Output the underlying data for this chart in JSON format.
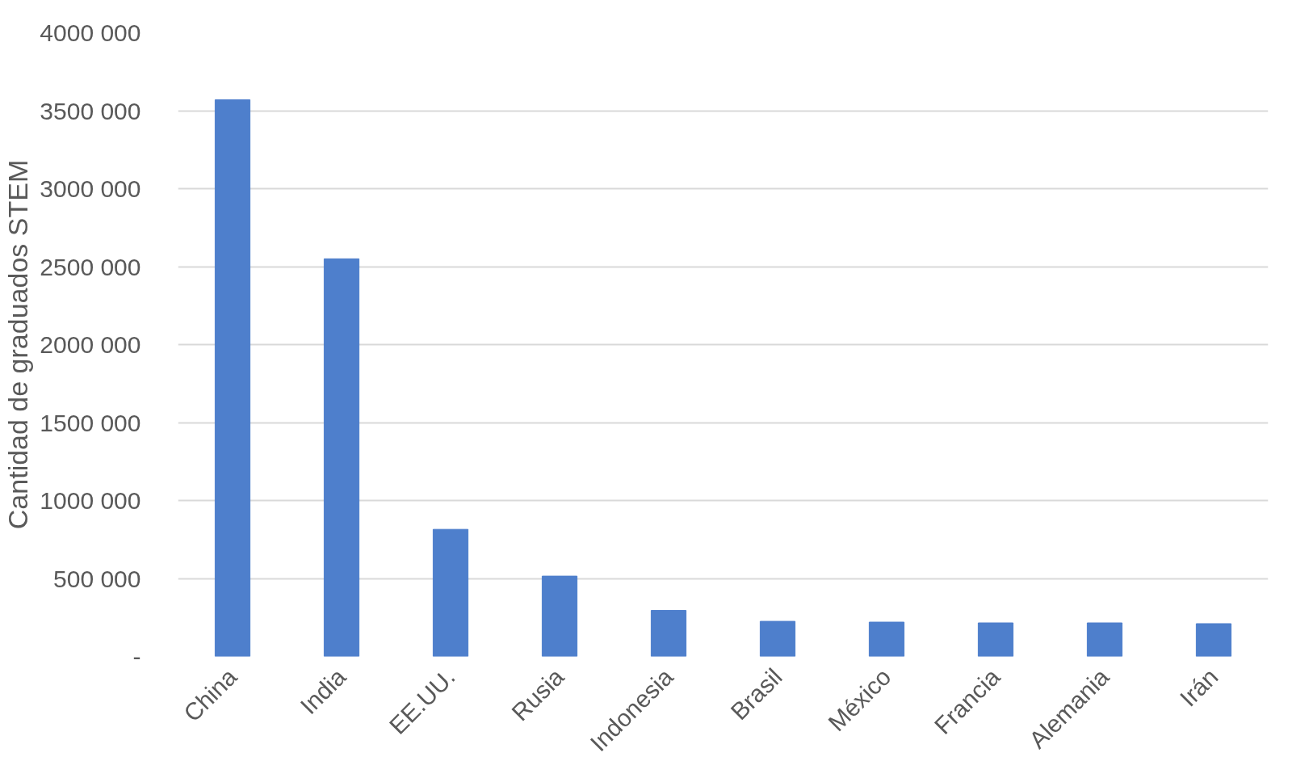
{
  "chart_data": {
    "type": "bar",
    "ylabel": "Cantidad de graduados STEM",
    "categories": [
      "China",
      "India",
      "EE.UU.",
      "Rusia",
      "Indonesia",
      "Brasil",
      "México",
      "Francia",
      "Alemania",
      "Irán"
    ],
    "values": [
      3570000,
      2550000,
      815000,
      515000,
      295000,
      225000,
      220000,
      215000,
      215000,
      210000
    ],
    "color": "#4e7fcc",
    "ylim": [
      0,
      4000000
    ],
    "yticks": [
      {
        "value": 0,
        "label": "-"
      },
      {
        "value": 500000,
        "label": "500 000"
      },
      {
        "value": 1000000,
        "label": "1000 000"
      },
      {
        "value": 1500000,
        "label": "1500 000"
      },
      {
        "value": 2000000,
        "label": "2000 000"
      },
      {
        "value": 2500000,
        "label": "2500 000"
      },
      {
        "value": 3000000,
        "label": "3000 000"
      },
      {
        "value": 3500000,
        "label": "3500 000"
      },
      {
        "value": 4000000,
        "label": "4000 000"
      }
    ],
    "grid": "y"
  }
}
